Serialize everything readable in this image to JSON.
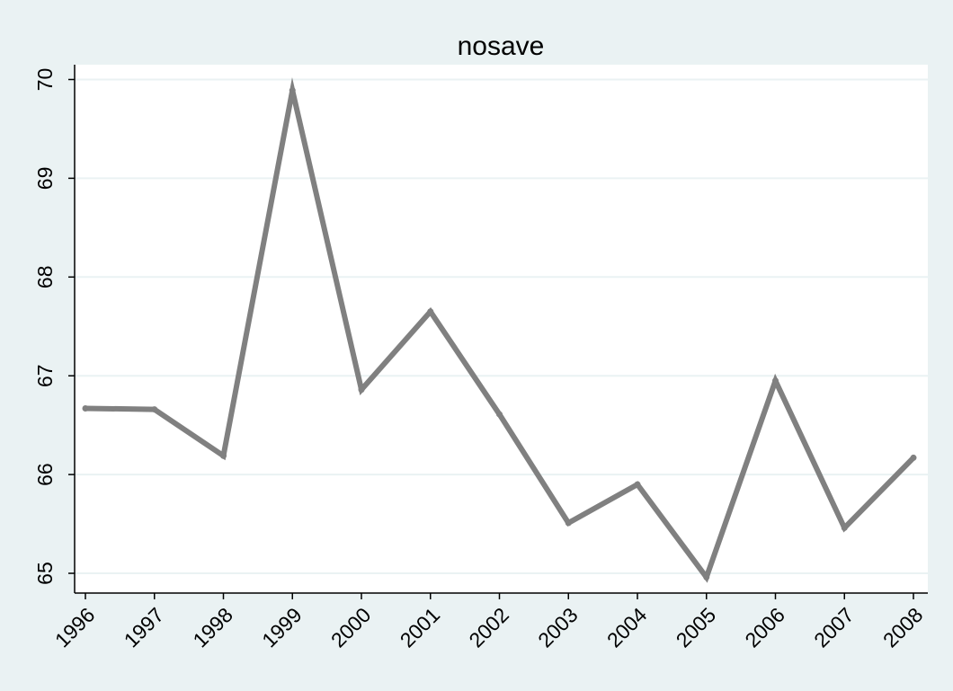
{
  "chart_data": {
    "type": "line",
    "title": "nosave",
    "xlabel": "",
    "ylabel": "",
    "x": [
      "1996",
      "1997",
      "1998",
      "1999",
      "2000",
      "2001",
      "2002",
      "2003",
      "2004",
      "2005",
      "2006",
      "2007",
      "2008"
    ],
    "series": [
      {
        "values": [
          66.67,
          66.66,
          66.19,
          69.89,
          66.86,
          67.65,
          66.61,
          65.51,
          65.9,
          64.96,
          66.95,
          65.46,
          66.17
        ]
      }
    ],
    "y_ticks": [
      65,
      66,
      67,
      68,
      69,
      70
    ],
    "ylim": [
      64.8,
      70.15
    ],
    "grid": true,
    "legend": "none",
    "colors": {
      "background": "#eaf2f3",
      "plot_area": "#ffffff",
      "line": "#808080",
      "grid": "#eaf2f3",
      "axis": "#000000"
    }
  }
}
